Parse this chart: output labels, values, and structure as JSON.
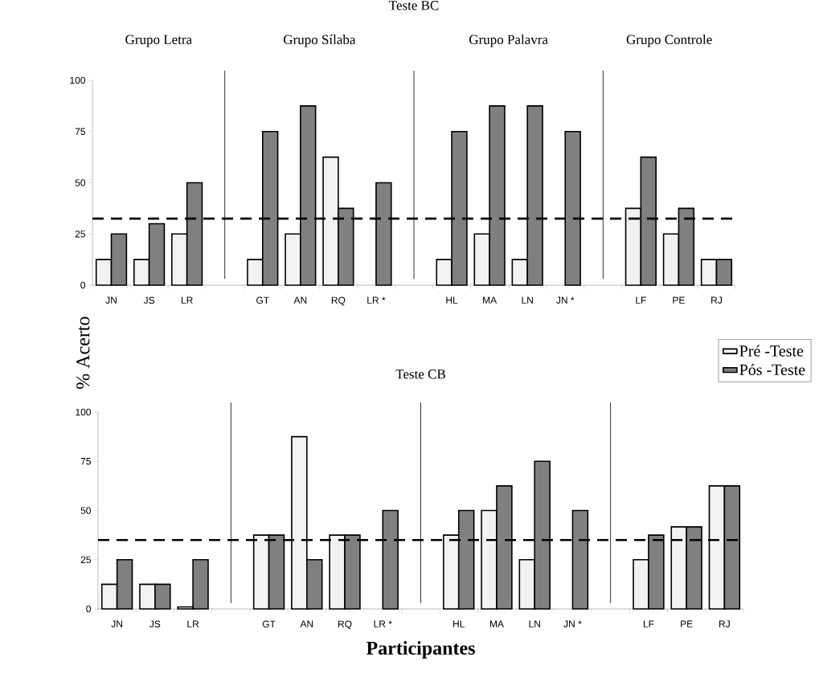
{
  "chart_data": [
    {
      "type": "bar",
      "title": "Teste BC",
      "categories": [
        "JN",
        "JS",
        "LR",
        null,
        "GT",
        "AN",
        "RQ",
        "LR *",
        null,
        "HL",
        "MA",
        "LN",
        "JN *",
        null,
        "LF",
        "PE",
        "RJ"
      ],
      "series": [
        {
          "color": "#f2f2f2",
          "values": [
            12.5,
            12.5,
            25,
            null,
            12.5,
            25,
            62.5,
            null,
            null,
            12.5,
            25,
            12.5,
            null,
            null,
            37.5,
            25,
            12.5
          ]
        },
        {
          "color": "#808080",
          "values": [
            25,
            30,
            50,
            null,
            75,
            87.5,
            37.5,
            50,
            null,
            75,
            87.5,
            87.5,
            75,
            null,
            62.5,
            37.5,
            12.5
          ]
        }
      ],
      "ylim": [
        0,
        100
      ],
      "yticks": [
        0,
        25,
        50,
        75,
        100
      ],
      "annotations": [
        "Grupo Letra",
        "Grupo Sílaba",
        "Grupo Palavra",
        "Grupo Controle"
      ],
      "ref_lines": [
        {
          "axis": "y",
          "value": 32.5,
          "line_style": "dashed",
          "color": "#000000"
        }
      ],
      "ylabel": "% Acerto"
    },
    {
      "type": "bar",
      "title": "Teste CB",
      "categories": [
        "JN",
        "JS",
        "LR",
        null,
        "GT",
        "AN",
        "RQ",
        "LR *",
        null,
        "HL",
        "MA",
        "LN",
        "JN *",
        null,
        "LF",
        "PE",
        "RJ"
      ],
      "series": [
        {
          "name": "Pré -Teste",
          "color": "#f2f2f2",
          "values": [
            12.5,
            12.5,
            1,
            null,
            37.5,
            87.5,
            37.5,
            null,
            null,
            37.5,
            50,
            25,
            null,
            null,
            25,
            41.7,
            62.5
          ]
        },
        {
          "name": "Pós -Teste",
          "color": "#808080",
          "values": [
            25,
            12.5,
            25,
            null,
            37.5,
            25,
            37.5,
            50,
            null,
            50,
            62.5,
            75,
            50,
            null,
            37.5,
            41.7,
            62.5
          ]
        }
      ],
      "ylim": [
        0,
        100
      ],
      "yticks": [
        0,
        25,
        50,
        75,
        100
      ],
      "ref_lines": [
        {
          "axis": "y",
          "value": 35,
          "line_style": "dashed",
          "color": "#000000"
        }
      ],
      "xlabel": "Participantes",
      "legend": "top right"
    }
  ]
}
